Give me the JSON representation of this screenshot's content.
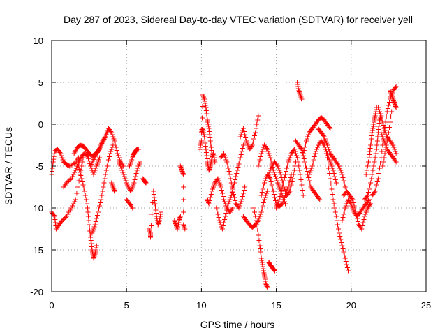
{
  "chart_data": {
    "type": "scatter",
    "title": "Day 287 of 2023, Sidereal Day-to-day VTEC variation (SDTVAR) for receiver yell",
    "xlabel": "GPS time / hours",
    "ylabel": "SDTVAR / TECUs",
    "xlim": [
      0,
      25
    ],
    "ylim": [
      -20,
      10
    ],
    "xticks": [
      "0",
      "5",
      "10",
      "15",
      "20",
      "25"
    ],
    "yticks": [
      "-20",
      "-15",
      "-10",
      "-5",
      "0",
      "5",
      "10"
    ],
    "grid": true,
    "marker": "plus",
    "series": [
      {
        "name": "SDTVAR",
        "color": "#ff0000",
        "traces": [
          {
            "x": [
              0.0,
              0.1,
              0.2,
              0.4,
              0.6,
              0.8,
              1.0,
              1.2,
              1.5,
              1.8
            ],
            "y": [
              -6.0,
              -4.5,
              -3.2,
              -3.0,
              -3.5,
              -4.5,
              -4.8,
              -5.0,
              -4.7,
              -4.0
            ]
          },
          {
            "x": [
              0.0,
              0.2,
              0.3,
              0.5,
              0.7,
              1.0,
              1.3,
              1.6,
              1.9,
              2.1
            ],
            "y": [
              -10.5,
              -11.0,
              -12.5,
              -12.0,
              -11.5,
              -11.0,
              -10.0,
              -9.0,
              -6.0,
              -4.0
            ]
          },
          {
            "x": [
              0.8,
              1.0,
              1.3,
              1.6,
              1.8,
              2.0,
              2.2,
              2.4,
              2.6,
              2.8,
              3.0,
              3.2
            ],
            "y": [
              -7.5,
              -7.0,
              -6.5,
              -5.5,
              -4.5,
              -3.8,
              -3.5,
              -3.8,
              -5.0,
              -6.0,
              -5.0,
              -4.0
            ]
          },
          {
            "x": [
              1.5,
              1.7,
              1.9,
              2.1,
              2.3,
              2.5,
              2.7,
              2.9,
              3.1,
              3.3,
              3.5,
              3.7
            ],
            "y": [
              -3.5,
              -2.8,
              -2.5,
              -2.6,
              -3.0,
              -3.5,
              -3.8,
              -3.6,
              -3.2,
              -2.5,
              -1.8,
              -0.8
            ]
          },
          {
            "x": [
              1.8,
              2.0,
              2.2,
              2.4,
              2.5,
              2.6,
              2.7,
              2.8,
              2.9,
              3.0
            ],
            "y": [
              -5.0,
              -6.5,
              -8.0,
              -10.0,
              -12.0,
              -13.5,
              -15.0,
              -16.0,
              -15.5,
              -14.5
            ]
          },
          {
            "x": [
              2.6,
              2.8,
              3.0,
              3.2,
              3.4,
              3.6,
              3.8,
              4.0,
              4.2,
              4.4,
              4.6,
              4.8
            ],
            "y": [
              -5.0,
              -4.2,
              -3.5,
              -3.0,
              -2.0,
              -1.5,
              -0.5,
              -1.0,
              -2.0,
              -3.5,
              -4.5,
              -5.0
            ]
          },
          {
            "x": [
              2.7,
              2.9,
              3.1,
              3.3,
              3.5,
              3.7,
              3.9,
              4.1
            ],
            "y": [
              -13.0,
              -12.0,
              -10.5,
              -9.0,
              -7.0,
              -5.0,
              -3.5,
              -2.5
            ]
          },
          {
            "x": [
              4.0,
              4.1,
              4.2
            ],
            "y": [
              -7.0,
              -7.5,
              -8.0
            ]
          },
          {
            "x": [
              4.5,
              4.7,
              4.9,
              5.1,
              5.3,
              5.5,
              5.7,
              5.9
            ],
            "y": [
              -4.5,
              -5.5,
              -6.5,
              -7.5,
              -8.0,
              -7.0,
              -5.5,
              -4.5
            ]
          },
          {
            "x": [
              5.0,
              5.2,
              5.4
            ],
            "y": [
              -9.0,
              -9.5,
              -10.0
            ]
          },
          {
            "x": [
              5.2,
              5.4,
              5.5,
              5.6,
              5.7,
              5.8
            ],
            "y": [
              -5.0,
              -4.0,
              -3.5,
              -3.2,
              -3.0,
              -3.0
            ]
          },
          {
            "x": [
              6.1,
              6.2,
              6.3
            ],
            "y": [
              -6.5,
              -6.8,
              -7.0
            ]
          },
          {
            "x": [
              6.5,
              6.6,
              6.6,
              6.8,
              6.9,
              7.0,
              7.1,
              7.2,
              7.3
            ],
            "y": [
              -12.5,
              -13.0,
              -13.5,
              -8.0,
              -9.5,
              -11.0,
              -12.0,
              -11.5,
              -10.5
            ]
          },
          {
            "x": [
              8.2,
              8.3,
              8.4,
              8.5,
              8.6
            ],
            "y": [
              -11.5,
              -12.0,
              -12.5,
              -11.5,
              -11.0
            ]
          },
          {
            "x": [
              8.6,
              8.7,
              8.8,
              8.8,
              8.9
            ],
            "y": [
              -5.0,
              -5.5,
              -6.0,
              -12.0,
              -12.5
            ]
          },
          {
            "x": [
              9.9,
              10.0,
              10.1,
              10.2,
              10.3,
              10.4,
              10.5,
              10.6,
              10.7
            ],
            "y": [
              -3.0,
              -2.0,
              3.5,
              3.0,
              2.0,
              0.5,
              -0.5,
              -2.0,
              -3.5
            ]
          },
          {
            "x": [
              10.0,
              10.1,
              10.2,
              10.3,
              10.4,
              10.5,
              10.6,
              10.7,
              10.8,
              10.9
            ],
            "y": [
              -1.0,
              -0.5,
              -1.5,
              -3.0,
              -4.5,
              -5.5,
              -5.0,
              -4.0,
              -3.5,
              -4.5
            ]
          },
          {
            "x": [
              10.4,
              10.5,
              10.7,
              10.9,
              11.1,
              11.3,
              11.5,
              11.7,
              11.9,
              12.1
            ],
            "y": [
              -9.0,
              -9.5,
              -8.0,
              -7.0,
              -6.5,
              -7.5,
              -9.0,
              -10.0,
              -10.5,
              -10.0
            ]
          },
          {
            "x": [
              11.0,
              11.2,
              11.4,
              11.6,
              11.8,
              12.0,
              12.2,
              12.4,
              12.6,
              12.8
            ],
            "y": [
              -10.0,
              -11.5,
              -12.5,
              -11.0,
              -9.5,
              -8.5,
              -7.0,
              -5.5,
              -4.0,
              -2.5
            ]
          },
          {
            "x": [
              11.3,
              11.5,
              11.7,
              11.9,
              12.1,
              12.3,
              12.5,
              12.7,
              12.9
            ],
            "y": [
              -4.0,
              -3.5,
              -4.5,
              -6.0,
              -8.0,
              -9.5,
              -10.0,
              -9.0,
              -7.5
            ]
          },
          {
            "x": [
              12.6,
              12.8,
              13.0,
              13.2,
              13.4,
              13.6,
              13.8
            ],
            "y": [
              -1.5,
              -0.5,
              -2.0,
              -3.0,
              -2.5,
              -1.0,
              1.0
            ]
          },
          {
            "x": [
              12.8,
              13.0,
              13.2,
              13.4,
              13.6,
              13.8,
              14.0,
              14.2,
              14.4
            ],
            "y": [
              -11.0,
              -11.5,
              -12.0,
              -12.3,
              -12.0,
              -11.5,
              -10.5,
              -9.0,
              -8.0
            ]
          },
          {
            "x": [
              13.5,
              13.7,
              13.9,
              14.0,
              14.1,
              14.2,
              14.3,
              14.4
            ],
            "y": [
              -10.0,
              -12.0,
              -14.5,
              -16.0,
              -17.0,
              -18.0,
              -19.0,
              -19.5
            ]
          },
          {
            "x": [
              13.8,
              14.0,
              14.2,
              14.4,
              14.6,
              14.8,
              15.0,
              15.2,
              15.4,
              15.6
            ],
            "y": [
              -5.0,
              -3.5,
              -2.5,
              -3.0,
              -4.0,
              -5.5,
              -6.5,
              -7.5,
              -8.5,
              -9.5
            ]
          },
          {
            "x": [
              14.0,
              14.2,
              14.4,
              14.6,
              14.8,
              15.0,
              15.2,
              15.4,
              15.6,
              15.8,
              16.0
            ],
            "y": [
              -8.5,
              -7.0,
              -6.0,
              -6.5,
              -8.0,
              -9.5,
              -9.8,
              -9.5,
              -8.5,
              -7.5,
              -6.0
            ]
          },
          {
            "x": [
              14.5,
              14.6,
              14.7,
              14.8,
              14.9
            ],
            "y": [
              -16.5,
              -16.8,
              -17.0,
              -17.3,
              -17.5
            ]
          },
          {
            "x": [
              14.5,
              14.7,
              14.9,
              15.1,
              15.3,
              15.5,
              15.7,
              15.9,
              16.1,
              16.3
            ],
            "y": [
              -6.0,
              -5.0,
              -4.5,
              -5.0,
              -6.0,
              -7.5,
              -8.5,
              -8.0,
              -6.5,
              -4.5
            ]
          },
          {
            "x": [
              15.0,
              15.2,
              15.4,
              15.6,
              15.8,
              16.0,
              16.2,
              16.4,
              16.6,
              16.8
            ],
            "y": [
              -10.0,
              -9.0,
              -7.5,
              -6.0,
              -4.5,
              -3.5,
              -3.0,
              -4.0,
              -6.0,
              -8.5
            ]
          },
          {
            "x": [
              16.4,
              16.5,
              16.6,
              16.7
            ],
            "y": [
              5.0,
              4.0,
              3.5,
              3.0
            ]
          },
          {
            "x": [
              16.3,
              16.5,
              16.7,
              16.9,
              17.1,
              17.3,
              17.5,
              17.7,
              17.9
            ],
            "y": [
              -2.0,
              -2.5,
              -3.0,
              -4.5,
              -6.0,
              -7.5,
              -8.0,
              -8.5,
              -9.0
            ]
          },
          {
            "x": [
              16.8,
              17.0,
              17.2,
              17.4,
              17.6,
              17.8,
              18.0,
              18.2,
              18.4,
              18.6
            ],
            "y": [
              -3.5,
              -2.0,
              -1.0,
              -0.5,
              0.0,
              0.5,
              0.8,
              0.5,
              0.0,
              -0.5
            ]
          },
          {
            "x": [
              17.2,
              17.4,
              17.6,
              17.8,
              18.0,
              18.2,
              18.4,
              18.6,
              18.8,
              19.0
            ],
            "y": [
              -6.0,
              -5.0,
              -3.5,
              -2.5,
              -2.0,
              -2.5,
              -3.5,
              -4.5,
              -5.5,
              -7.0
            ]
          },
          {
            "x": [
              17.8,
              18.0,
              18.2,
              18.4,
              18.6,
              18.8,
              19.0,
              19.2,
              19.4,
              19.6
            ],
            "y": [
              -0.5,
              -1.0,
              -1.5,
              -2.5,
              -3.5,
              -4.0,
              -4.5,
              -5.0,
              -6.0,
              -7.5
            ]
          },
          {
            "x": [
              18.2,
              18.4,
              18.6,
              18.8,
              19.0,
              19.2,
              19.4,
              19.6,
              19.8
            ],
            "y": [
              -2.0,
              -4.0,
              -6.5,
              -9.0,
              -11.0,
              -13.0,
              -14.5,
              -16.0,
              -17.5
            ]
          },
          {
            "x": [
              19.4,
              19.6,
              19.8,
              20.0,
              20.2,
              20.4,
              20.6,
              20.8,
              21.0,
              21.2
            ],
            "y": [
              -11.5,
              -10.0,
              -9.0,
              -9.5,
              -10.5,
              -11.0,
              -10.5,
              -10.0,
              -9.5,
              -9.0
            ]
          },
          {
            "x": [
              19.5,
              19.7,
              19.9,
              20.1,
              20.3,
              20.5,
              20.7,
              20.9,
              21.1,
              21.3
            ],
            "y": [
              -8.5,
              -8.0,
              -8.5,
              -9.0,
              -10.5,
              -12.0,
              -12.5,
              -11.0,
              -10.0,
              -9.5
            ]
          },
          {
            "x": [
              20.9,
              21.1,
              21.3,
              21.5,
              21.7,
              21.8,
              21.9,
              22.0
            ],
            "y": [
              -9.0,
              -8.5,
              -7.0,
              -5.0,
              -3.0,
              -1.0,
              0.5,
              1.0
            ]
          },
          {
            "x": [
              21.0,
              21.2,
              21.3,
              21.4,
              21.5,
              21.6,
              21.7
            ],
            "y": [
              -6.0,
              -4.0,
              -2.5,
              -1.0,
              0.0,
              1.0,
              2.0
            ]
          },
          {
            "x": [
              21.4,
              21.6,
              21.8,
              22.0,
              22.2,
              22.4,
              22.6,
              22.8,
              23.0
            ],
            "y": [
              -8.5,
              -8.0,
              -6.5,
              -4.0,
              -1.0,
              1.5,
              3.0,
              4.0,
              4.5
            ]
          },
          {
            "x": [
              21.8,
              22.0,
              22.2,
              22.4,
              22.6,
              22.8,
              23.0
            ],
            "y": [
              2.0,
              1.0,
              -0.5,
              -1.5,
              -2.0,
              -2.5,
              -3.5
            ]
          },
          {
            "x": [
              22.0,
              22.2,
              22.4,
              22.6,
              22.8,
              23.0
            ],
            "y": [
              -1.0,
              -2.0,
              -3.0,
              -3.5,
              -4.0,
              -4.5
            ]
          },
          {
            "x": [
              22.1,
              22.3,
              22.5,
              22.7
            ],
            "y": [
              -5.0,
              -3.0,
              -1.0,
              1.5
            ]
          },
          {
            "x": [
              22.6,
              22.7,
              22.8,
              22.9,
              23.0
            ],
            "y": [
              4.0,
              3.5,
              3.0,
              2.5,
              2.0
            ]
          }
        ]
      }
    ]
  }
}
